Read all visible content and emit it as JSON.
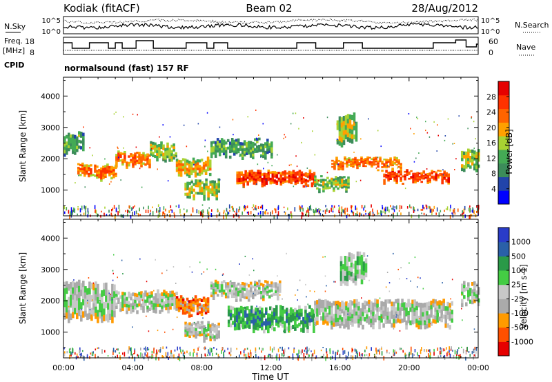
{
  "header": {
    "station": "Kodiak (fitACF)",
    "beam": "Beam 02",
    "date": "28/Aug/2012"
  },
  "noise_panel": {
    "left_label": "N.Sky",
    "right_label": "N.Search",
    "left_ticks": [
      "10^5",
      "10^0"
    ],
    "right_ticks": [
      "10^5",
      "10^0"
    ]
  },
  "freq_panel": {
    "left_label_line1": "Freq.",
    "left_label_line2": "[MHz]",
    "right_label": "Nave",
    "left_ticks": [
      "18",
      "8"
    ],
    "right_ticks": [
      "60",
      "0"
    ]
  },
  "cpid": {
    "label": "CPID",
    "text": "normalsound (fast) 157 RF"
  },
  "colors": {
    "power_scale": [
      "#0000ff",
      "#2244aa",
      "#3c8c5a",
      "#44aa55",
      "#a8d232",
      "#ffa000",
      "#ff6400",
      "#ff3200",
      "#e60000"
    ],
    "velocity_scale": [
      "#e60000",
      "#ff5000",
      "#ff9a00",
      "#aaaaaa",
      "#c8c8c8",
      "#44cc44",
      "#2a9a48",
      "#2a60a8",
      "#2a3cc8"
    ]
  },
  "chart_data": [
    {
      "type": "heatmap",
      "name": "power",
      "ylabel": "Slant Range [km]",
      "yticks": [
        "1000",
        "2000",
        "3000",
        "4000"
      ],
      "ylim": [
        180,
        4600
      ],
      "xlim": [
        0,
        24
      ],
      "colorbar_label": "Power [dB]",
      "colorbar_ticks": [
        "4",
        "8",
        "12",
        "16",
        "20",
        "24",
        "28"
      ],
      "regions": [
        {
          "t0": 0.0,
          "t1": 1.2,
          "r0": 2200,
          "r1": 2800,
          "level": 3
        },
        {
          "t0": 0.8,
          "t1": 3.0,
          "r0": 1400,
          "r1": 1800,
          "level": 6
        },
        {
          "t0": 3.0,
          "t1": 5.0,
          "r0": 1800,
          "r1": 2200,
          "level": 6
        },
        {
          "t0": 5.0,
          "t1": 6.5,
          "r0": 2000,
          "r1": 2500,
          "level": 4
        },
        {
          "t0": 6.5,
          "t1": 8.5,
          "r0": 1500,
          "r1": 2000,
          "level": 5
        },
        {
          "t0": 7.0,
          "t1": 9.0,
          "r0": 800,
          "r1": 1300,
          "level": 4
        },
        {
          "t0": 8.5,
          "t1": 12.0,
          "r0": 2100,
          "r1": 2600,
          "level": 3
        },
        {
          "t0": 10.0,
          "t1": 14.5,
          "r0": 1200,
          "r1": 1600,
          "level": 7
        },
        {
          "t0": 14.5,
          "t1": 16.5,
          "r0": 1000,
          "r1": 1400,
          "level": 4
        },
        {
          "t0": 15.5,
          "t1": 19.5,
          "r0": 1700,
          "r1": 2000,
          "level": 6
        },
        {
          "t0": 18.5,
          "t1": 22.3,
          "r0": 1300,
          "r1": 1600,
          "level": 7
        },
        {
          "t0": 15.8,
          "t1": 17.0,
          "r0": 2500,
          "r1": 3400,
          "level": 4
        },
        {
          "t0": 23.0,
          "t1": 24.0,
          "r0": 1700,
          "r1": 2300,
          "level": 4
        }
      ]
    },
    {
      "type": "heatmap",
      "name": "velocity",
      "ylabel": "Slant Range [km]",
      "yticks": [
        "1000",
        "2000",
        "3000",
        "4000"
      ],
      "ylim": [
        180,
        4600
      ],
      "xlim": [
        0,
        24
      ],
      "xticks": [
        "00:00",
        "04:00",
        "08:00",
        "12:00",
        "16:00",
        "20:00",
        "00:00"
      ],
      "xlabel": "Time UT",
      "colorbar_label": "Velocity [m s-1]",
      "colorbar_ticks": [
        "-1000",
        "-500",
        "-100",
        "-25",
        "25",
        "100",
        "500",
        "1000"
      ],
      "regions": [
        {
          "t0": 0.0,
          "t1": 3.0,
          "r0": 1400,
          "r1": 2600,
          "level": 4
        },
        {
          "t0": 3.0,
          "t1": 6.5,
          "r0": 1700,
          "r1": 2300,
          "level": 4
        },
        {
          "t0": 6.5,
          "t1": 8.3,
          "r0": 1600,
          "r1": 2100,
          "level": 2
        },
        {
          "t0": 7.0,
          "t1": 9.0,
          "r0": 800,
          "r1": 1300,
          "level": 4
        },
        {
          "t0": 9.5,
          "t1": 14.5,
          "r0": 1100,
          "r1": 1800,
          "level": 6
        },
        {
          "t0": 8.5,
          "t1": 12.5,
          "r0": 2100,
          "r1": 2600,
          "level": 4
        },
        {
          "t0": 14.5,
          "t1": 22.5,
          "r0": 1200,
          "r1": 2000,
          "level": 4
        },
        {
          "t0": 16.0,
          "t1": 17.5,
          "r0": 2600,
          "r1": 3500,
          "level": 5
        },
        {
          "t0": 23.0,
          "t1": 24.0,
          "r0": 1900,
          "r1": 2600,
          "level": 4
        }
      ]
    }
  ]
}
